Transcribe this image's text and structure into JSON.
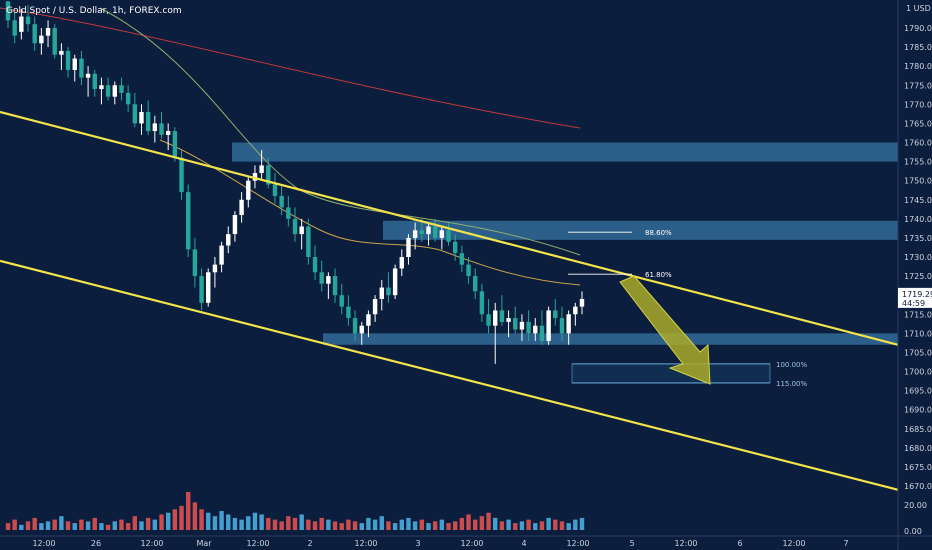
{
  "chart_data": {
    "type": "candlestick",
    "title": "Gold Spot / U.S. Dollar, 1h, FOREX.com",
    "y_unit": "USD",
    "y_ticks": [
      1790,
      1785,
      1780,
      1775,
      1770,
      1765,
      1760,
      1755,
      1750,
      1745,
      1740,
      1735,
      1730,
      1725,
      1720,
      1715,
      1710,
      1705,
      1700,
      1695,
      1690,
      1685,
      1680,
      1675,
      1670
    ],
    "y_tick_labels": [
      "1790.00",
      "1785.00",
      "1780.00",
      "1775.00",
      "1770.00",
      "1765.00",
      "1760.00",
      "1755.00",
      "1750.00",
      "1745.00",
      "1740.00",
      "1735.00",
      "1730.00",
      "1725.00",
      "1720.00",
      "1715.00",
      "1710.00",
      "1705.00",
      "1700.00",
      "1695.00",
      "1690.00",
      "1685.00",
      "1680.00",
      "1675.00",
      "1670.00"
    ],
    "ylim": [
      1665,
      1797
    ],
    "x_ticks": [
      "12:00",
      "26",
      "12:00",
      "Mar",
      "12:00",
      "2",
      "12:00",
      "3",
      "12:00",
      "4",
      "12:00",
      "5",
      "12:00",
      "6",
      "12:00",
      "7"
    ],
    "volume_ticks": [
      "0.00",
      "20.00"
    ],
    "last_price": "1719.29",
    "countdown": "44:59",
    "price_levels": [
      {
        "label": "88.60%",
        "value": 1736.5
      },
      {
        "label": "61.80%",
        "value": 1725.5
      },
      {
        "label": "100.00%",
        "value": 1702.0
      },
      {
        "label": "115.00%",
        "value": 1697.0
      }
    ],
    "zones": [
      {
        "from": 1755,
        "to": 1760
      },
      {
        "from": 1734.5,
        "to": 1739.5
      },
      {
        "from": 1707,
        "to": 1710
      },
      {
        "from": 1697,
        "to": 1702
      }
    ],
    "trendlines": [
      {
        "name": "upper",
        "y_start": 1768,
        "y_end": 1707
      },
      {
        "name": "lower",
        "y_start": 1729,
        "y_end": 1669
      }
    ],
    "candles": [
      [
        1797,
        1797,
        1790,
        1792
      ],
      [
        1792,
        1794,
        1786,
        1788
      ],
      [
        1789,
        1795,
        1787,
        1793
      ],
      [
        1793,
        1796,
        1789,
        1791
      ],
      [
        1791,
        1793,
        1784,
        1786
      ],
      [
        1786,
        1790,
        1783,
        1788
      ],
      [
        1788,
        1792,
        1785,
        1790
      ],
      [
        1790,
        1791,
        1782,
        1783
      ],
      [
        1783,
        1786,
        1779,
        1784
      ],
      [
        1784,
        1785,
        1777,
        1779
      ],
      [
        1779,
        1783,
        1776,
        1782
      ],
      [
        1782,
        1784,
        1775,
        1777
      ],
      [
        1777,
        1780,
        1772,
        1778
      ],
      [
        1778,
        1779,
        1772,
        1774
      ],
      [
        1774,
        1777,
        1770,
        1775
      ],
      [
        1775,
        1777,
        1771,
        1772
      ],
      [
        1772,
        1776,
        1770,
        1775
      ],
      [
        1775,
        1777,
        1771,
        1773
      ],
      [
        1773,
        1775,
        1768,
        1770
      ],
      [
        1770,
        1773,
        1764,
        1765
      ],
      [
        1765,
        1770,
        1762,
        1768
      ],
      [
        1768,
        1771,
        1762,
        1763
      ],
      [
        1763,
        1767,
        1760,
        1765
      ],
      [
        1765,
        1768,
        1761,
        1762
      ],
      [
        1762,
        1765,
        1758,
        1763
      ],
      [
        1763,
        1764,
        1755,
        1756
      ],
      [
        1756,
        1758,
        1745,
        1747
      ],
      [
        1747,
        1749,
        1730,
        1732
      ],
      [
        1732,
        1735,
        1722,
        1725
      ],
      [
        1725,
        1727,
        1716,
        1718
      ],
      [
        1718,
        1727,
        1717,
        1726
      ],
      [
        1726,
        1730,
        1722,
        1728
      ],
      [
        1728,
        1734,
        1726,
        1733
      ],
      [
        1733,
        1738,
        1731,
        1736
      ],
      [
        1736,
        1742,
        1734,
        1741
      ],
      [
        1741,
        1747,
        1739,
        1745
      ],
      [
        1745,
        1751,
        1743,
        1750
      ],
      [
        1750,
        1754,
        1748,
        1752
      ],
      [
        1752,
        1758,
        1750,
        1754
      ],
      [
        1754,
        1756,
        1748,
        1749
      ],
      [
        1749,
        1752,
        1744,
        1746
      ],
      [
        1746,
        1749,
        1741,
        1743
      ],
      [
        1743,
        1746,
        1738,
        1740
      ],
      [
        1740,
        1743,
        1734,
        1736
      ],
      [
        1736,
        1740,
        1732,
        1738
      ],
      [
        1738,
        1740,
        1728,
        1730
      ],
      [
        1730,
        1733,
        1724,
        1726
      ],
      [
        1726,
        1729,
        1721,
        1723
      ],
      [
        1723,
        1726,
        1719,
        1725
      ],
      [
        1725,
        1727,
        1718,
        1720
      ],
      [
        1720,
        1723,
        1715,
        1717
      ],
      [
        1717,
        1720,
        1712,
        1714
      ],
      [
        1714,
        1716,
        1708,
        1710
      ],
      [
        1710,
        1713,
        1707,
        1712
      ],
      [
        1712,
        1716,
        1709,
        1715
      ],
      [
        1715,
        1720,
        1713,
        1719
      ],
      [
        1719,
        1724,
        1716,
        1722
      ],
      [
        1722,
        1726,
        1718,
        1720
      ],
      [
        1720,
        1728,
        1719,
        1727
      ],
      [
        1727,
        1732,
        1725,
        1730
      ],
      [
        1730,
        1736,
        1728,
        1735
      ],
      [
        1735,
        1739,
        1732,
        1737
      ],
      [
        1737,
        1740,
        1734,
        1736
      ],
      [
        1736,
        1739,
        1733,
        1738
      ],
      [
        1738,
        1740,
        1734,
        1735
      ],
      [
        1735,
        1738,
        1732,
        1737
      ],
      [
        1737,
        1739,
        1733,
        1734
      ],
      [
        1734,
        1736,
        1729,
        1731
      ],
      [
        1731,
        1733,
        1726,
        1728
      ],
      [
        1728,
        1730,
        1723,
        1725
      ],
      [
        1725,
        1727,
        1719,
        1721
      ],
      [
        1721,
        1723,
        1713,
        1715
      ],
      [
        1715,
        1719,
        1710,
        1712
      ],
      [
        1712,
        1718,
        1702,
        1716
      ],
      [
        1716,
        1720,
        1712,
        1713
      ],
      [
        1713,
        1716,
        1709,
        1714
      ],
      [
        1714,
        1717,
        1710,
        1711
      ],
      [
        1711,
        1715,
        1708,
        1713
      ],
      [
        1713,
        1716,
        1708,
        1710
      ],
      [
        1710,
        1714,
        1708,
        1712
      ],
      [
        1712,
        1716,
        1707,
        1708
      ],
      [
        1708,
        1717,
        1707,
        1716
      ],
      [
        1716,
        1719,
        1712,
        1714
      ],
      [
        1714,
        1717,
        1708,
        1710
      ],
      [
        1710,
        1716,
        1707,
        1715
      ],
      [
        1715,
        1718,
        1712,
        1717
      ],
      [
        1717,
        1721,
        1715,
        1719
      ]
    ],
    "volume": [
      4,
      6,
      3,
      5,
      7,
      4,
      5,
      6,
      8,
      5,
      4,
      6,
      5,
      7,
      4,
      3,
      5,
      6,
      4,
      8,
      5,
      7,
      6,
      9,
      10,
      12,
      14,
      22,
      16,
      12,
      10,
      8,
      11,
      9,
      7,
      6,
      8,
      10,
      9,
      7,
      6,
      5,
      8,
      7,
      9,
      6,
      5,
      7,
      6,
      5,
      4,
      6,
      5,
      4,
      7,
      6,
      8,
      5,
      4,
      6,
      7,
      5,
      6,
      4,
      5,
      6,
      4,
      5,
      7,
      9,
      6,
      8,
      10,
      7,
      5,
      6,
      4,
      5,
      6,
      4,
      5,
      7,
      6,
      5,
      4,
      6,
      7
    ]
  }
}
